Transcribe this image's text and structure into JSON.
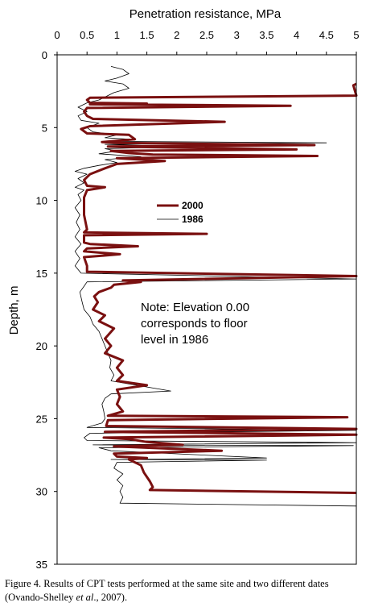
{
  "chart_data": {
    "type": "line",
    "title": "",
    "xlabel": "Penetration resistance, MPa",
    "ylabel": "Depth, m",
    "xlim": [
      0,
      5
    ],
    "ylim": [
      0,
      35
    ],
    "x_axis_position": "top",
    "y_inverted": true,
    "grid": false,
    "x_ticks": [
      "0",
      "0.5",
      "1",
      "1.5",
      "2",
      "2.5",
      "3",
      "3.5",
      "4",
      "4.5",
      "5"
    ],
    "y_ticks": [
      "0",
      "5",
      "10",
      "15",
      "20",
      "25",
      "30",
      "35"
    ],
    "legend": {
      "position": "center",
      "entries": [
        "2000",
        "1986"
      ]
    },
    "annotation": [
      "Note: Elevation 0.00",
      "corresponds to floor",
      "level in 1986"
    ],
    "series": [
      {
        "name": "2000",
        "color": "#7a1010",
        "points": [
          [
            5.0,
            2.0
          ],
          [
            4.95,
            2.1
          ],
          [
            5.0,
            2.8
          ],
          [
            0.55,
            2.95
          ],
          [
            0.5,
            3.1
          ],
          [
            0.55,
            3.3
          ],
          [
            1.5,
            3.35
          ],
          [
            0.55,
            3.4
          ],
          [
            3.9,
            3.5
          ],
          [
            0.5,
            3.65
          ],
          [
            0.45,
            3.9
          ],
          [
            0.5,
            4.2
          ],
          [
            0.6,
            4.4
          ],
          [
            2.8,
            4.6
          ],
          [
            0.55,
            4.9
          ],
          [
            0.4,
            5.1
          ],
          [
            0.5,
            5.4
          ],
          [
            1.2,
            5.5
          ],
          [
            1.3,
            5.8
          ],
          [
            0.75,
            6.0
          ],
          [
            1.0,
            6.05
          ],
          [
            4.3,
            6.2
          ],
          [
            0.85,
            6.3
          ],
          [
            4.0,
            6.5
          ],
          [
            0.9,
            6.6
          ],
          [
            1.2,
            6.75
          ],
          [
            1.6,
            6.85
          ],
          [
            4.35,
            6.95
          ],
          [
            1.0,
            7.1
          ],
          [
            1.8,
            7.3
          ],
          [
            1.0,
            7.5
          ],
          [
            0.8,
            7.8
          ],
          [
            0.55,
            8.2
          ],
          [
            0.45,
            8.6
          ],
          [
            0.5,
            9.0
          ],
          [
            0.8,
            9.1
          ],
          [
            0.5,
            9.3
          ],
          [
            0.45,
            9.8
          ],
          [
            0.45,
            11.0
          ],
          [
            0.5,
            12.0
          ],
          [
            0.45,
            12.2
          ],
          [
            2.5,
            12.3
          ],
          [
            0.45,
            12.4
          ],
          [
            0.45,
            12.9
          ],
          [
            0.55,
            13.0
          ],
          [
            1.35,
            13.15
          ],
          [
            0.5,
            13.3
          ],
          [
            0.45,
            13.5
          ],
          [
            1.05,
            13.7
          ],
          [
            0.45,
            13.9
          ],
          [
            0.5,
            14.5
          ],
          [
            0.5,
            14.9
          ],
          [
            5.0,
            15.2
          ],
          [
            1.1,
            15.5
          ],
          [
            1.4,
            15.6
          ],
          [
            0.95,
            15.8
          ],
          [
            0.9,
            16.0
          ],
          [
            0.7,
            16.3
          ],
          [
            0.62,
            16.6
          ],
          [
            0.68,
            17.0
          ],
          [
            0.6,
            17.5
          ],
          [
            0.8,
            17.9
          ],
          [
            0.7,
            18.3
          ],
          [
            0.95,
            18.8
          ],
          [
            0.8,
            19.5
          ],
          [
            0.9,
            20.0
          ],
          [
            0.8,
            20.5
          ],
          [
            1.1,
            21.0
          ],
          [
            1.0,
            21.5
          ],
          [
            1.1,
            22.0
          ],
          [
            1.0,
            22.4
          ],
          [
            1.5,
            22.7
          ],
          [
            1.0,
            23.0
          ],
          [
            1.05,
            23.5
          ],
          [
            1.0,
            24.0
          ],
          [
            1.1,
            24.5
          ],
          [
            0.85,
            24.8
          ],
          [
            4.85,
            24.9
          ],
          [
            0.85,
            25.1
          ],
          [
            0.82,
            25.5
          ],
          [
            5.0,
            25.7
          ],
          [
            0.8,
            25.9
          ],
          [
            5.0,
            26.1
          ],
          [
            0.78,
            26.3
          ],
          [
            1.2,
            26.4
          ],
          [
            1.5,
            26.6
          ],
          [
            2.1,
            26.8
          ],
          [
            0.95,
            26.9
          ],
          [
            2.75,
            27.2
          ],
          [
            0.95,
            27.4
          ],
          [
            1.0,
            27.6
          ],
          [
            1.5,
            27.7
          ],
          [
            1.2,
            27.8
          ],
          [
            1.4,
            28.2
          ],
          [
            1.45,
            28.7
          ],
          [
            1.55,
            29.3
          ],
          [
            1.6,
            29.7
          ],
          [
            1.55,
            29.9
          ],
          [
            5.0,
            30.1
          ]
        ]
      },
      {
        "name": "1986",
        "color": "#000000",
        "points": [
          [
            0.9,
            0.8
          ],
          [
            1.1,
            1.0
          ],
          [
            1.2,
            1.3
          ],
          [
            1.0,
            1.6
          ],
          [
            0.8,
            1.8
          ],
          [
            1.1,
            2.0
          ],
          [
            1.2,
            2.3
          ],
          [
            0.95,
            2.6
          ],
          [
            0.8,
            2.9
          ],
          [
            0.7,
            3.1
          ],
          [
            0.5,
            3.3
          ],
          [
            0.35,
            3.6
          ],
          [
            0.5,
            3.9
          ],
          [
            0.35,
            4.2
          ],
          [
            0.4,
            4.5
          ],
          [
            0.7,
            4.7
          ],
          [
            0.5,
            5.0
          ],
          [
            0.6,
            5.3
          ],
          [
            1.0,
            5.5
          ],
          [
            0.8,
            5.7
          ],
          [
            1.2,
            5.8
          ],
          [
            0.9,
            5.95
          ],
          [
            4.5,
            6.05
          ],
          [
            0.8,
            6.15
          ],
          [
            2.1,
            6.3
          ],
          [
            0.8,
            6.45
          ],
          [
            1.0,
            6.6
          ],
          [
            0.7,
            6.8
          ],
          [
            1.4,
            7.0
          ],
          [
            0.8,
            7.2
          ],
          [
            1.0,
            7.4
          ],
          [
            0.7,
            7.6
          ],
          [
            0.45,
            7.8
          ],
          [
            0.3,
            8.0
          ],
          [
            0.5,
            8.2
          ],
          [
            0.35,
            8.5
          ],
          [
            0.45,
            8.8
          ],
          [
            0.3,
            9.1
          ],
          [
            0.45,
            9.3
          ],
          [
            0.35,
            9.6
          ],
          [
            0.4,
            10.0
          ],
          [
            0.3,
            10.5
          ],
          [
            0.38,
            11.0
          ],
          [
            0.32,
            11.5
          ],
          [
            0.38,
            12.0
          ],
          [
            0.3,
            12.5
          ],
          [
            0.4,
            13.0
          ],
          [
            0.3,
            13.5
          ],
          [
            0.38,
            14.0
          ],
          [
            0.3,
            14.5
          ],
          [
            0.4,
            15.0
          ],
          [
            5.0,
            15.4
          ],
          [
            0.5,
            15.6
          ],
          [
            0.45,
            15.9
          ],
          [
            0.38,
            16.3
          ],
          [
            0.42,
            17.0
          ],
          [
            0.45,
            17.5
          ],
          [
            0.55,
            18.0
          ],
          [
            0.6,
            18.5
          ],
          [
            0.7,
            19.0
          ],
          [
            0.75,
            19.5
          ],
          [
            0.8,
            20.0
          ],
          [
            0.85,
            20.5
          ],
          [
            0.9,
            21.0
          ],
          [
            0.88,
            21.5
          ],
          [
            0.95,
            22.0
          ],
          [
            0.9,
            22.4
          ],
          [
            1.9,
            23.1
          ],
          [
            0.9,
            23.3
          ],
          [
            0.8,
            23.6
          ],
          [
            0.75,
            24.0
          ],
          [
            0.78,
            24.5
          ],
          [
            0.8,
            25.0
          ],
          [
            0.75,
            25.3
          ],
          [
            0.5,
            25.6
          ],
          [
            5.0,
            25.8
          ],
          [
            0.55,
            26.0
          ],
          [
            0.45,
            26.3
          ],
          [
            0.5,
            26.5
          ],
          [
            5.0,
            26.65
          ],
          [
            0.6,
            26.8
          ],
          [
            4.95,
            26.85
          ],
          [
            0.7,
            27.0
          ],
          [
            0.9,
            27.2
          ],
          [
            3.5,
            27.7
          ],
          [
            0.9,
            27.8
          ],
          [
            3.5,
            27.85
          ],
          [
            1.0,
            28.0
          ],
          [
            0.95,
            28.4
          ],
          [
            1.1,
            28.8
          ],
          [
            1.0,
            29.2
          ],
          [
            1.1,
            29.6
          ],
          [
            1.05,
            30.0
          ],
          [
            1.1,
            30.4
          ],
          [
            1.05,
            30.8
          ],
          [
            5.0,
            31.0
          ]
        ]
      }
    ]
  },
  "caption": {
    "part1": "Figure 4. Results of CPT tests performed at the same site and two different dates (Ovando-Shelley ",
    "italic": "et al",
    "part2": "., 2007)."
  }
}
